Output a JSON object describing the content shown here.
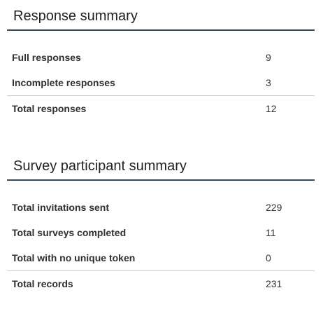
{
  "response_summary": {
    "title": "Response summary",
    "rows": [
      {
        "label": "Full responses",
        "value": "9"
      },
      {
        "label": "Incomplete responses",
        "value": "3"
      }
    ],
    "total": {
      "label": "Total responses",
      "value": "12"
    }
  },
  "participant_summary": {
    "title": "Survey participant summary",
    "rows": [
      {
        "label": "Total invitations sent",
        "value": "229"
      },
      {
        "label": "Total surveys completed",
        "value": "11"
      },
      {
        "label": "Total with no unique token",
        "value": "0"
      }
    ],
    "total": {
      "label": "Total records",
      "value": "231"
    }
  },
  "colors": {
    "title_rule": "#34495e",
    "row_divider": "#cccccc"
  }
}
